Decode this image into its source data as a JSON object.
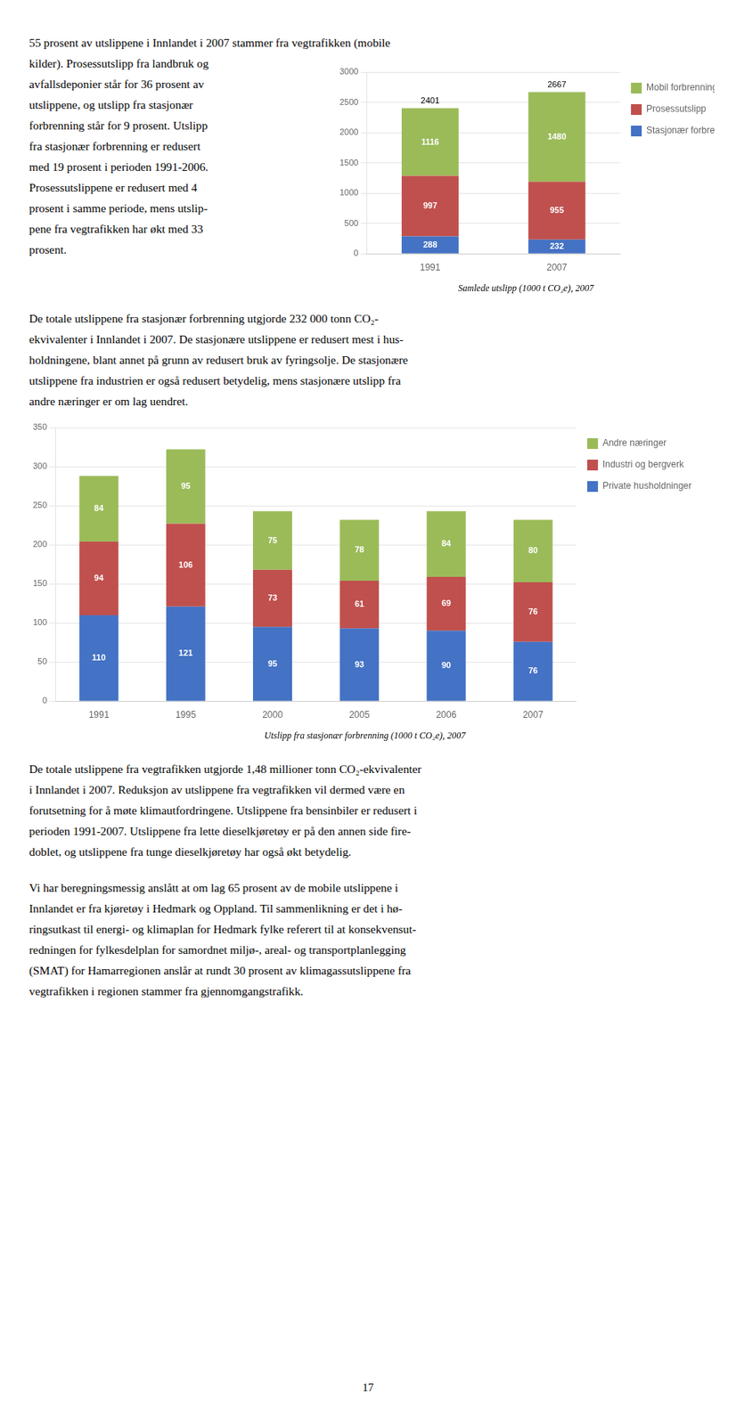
{
  "chart_data": [
    {
      "type": "bar",
      "stacked": true,
      "title": "Samlede utslipp (1000 t CO₂e), 2007",
      "categories": [
        "1991",
        "2007"
      ],
      "series": [
        {
          "name": "Stasjonær forbrenning",
          "color": "#4472C4",
          "values": [
            288,
            232
          ]
        },
        {
          "name": "Prosessutslipp",
          "color": "#C0504D",
          "values": [
            997,
            955
          ]
        },
        {
          "name": "Mobil forbrenning",
          "color": "#9BBB59",
          "values": [
            1116,
            1480
          ]
        }
      ],
      "totals": [
        2401,
        2667
      ],
      "ylim": [
        0,
        3000
      ],
      "yticks": [
        0,
        500,
        1000,
        1500,
        2000,
        2500,
        3000
      ],
      "grid": true,
      "legend": "right",
      "data_labels": true
    },
    {
      "type": "bar",
      "stacked": true,
      "title": "Utslipp fra stasjonær forbrenning (1000 t CO₂e), 2007",
      "categories": [
        "1991",
        "1995",
        "2000",
        "2005",
        "2006",
        "2007"
      ],
      "series": [
        {
          "name": "Private husholdninger",
          "color": "#4472C4",
          "values": [
            110,
            121,
            95,
            93,
            90,
            76
          ]
        },
        {
          "name": "Industri og bergverk",
          "color": "#C0504D",
          "values": [
            94,
            106,
            73,
            61,
            69,
            76
          ]
        },
        {
          "name": "Andre næringer",
          "color": "#9BBB59",
          "values": [
            84,
            95,
            75,
            78,
            84,
            80
          ]
        }
      ],
      "ylim": [
        0,
        350
      ],
      "yticks": [
        0,
        50,
        100,
        150,
        200,
        250,
        300,
        350
      ],
      "grid": true,
      "legend": "right",
      "data_labels": true
    }
  ],
  "paragraphs": [
    [
      "55 prosent av utslippene i Innlandet i 2007 stammer fra vegtrafikken (mobile",
      "kilder). Prosessutslipp fra landbruk og",
      "avfallsdeponier står for 36 prosent av",
      "utslippene, og utslipp fra stasjonær",
      "forbrenning står for 9 prosent. Utslipp",
      "fra stasjonær forbrenning er redusert",
      "med 19 prosent i perioden 1991-2006.",
      "Prosessutslippene er redusert med 4",
      "prosent i samme periode, mens utslip-",
      "pene fra vegtrafikken har økt med 33",
      "prosent."
    ],
    [
      "De totale utslippene fra stasjonær forbrenning utgjorde 232 000 tonn CO₂-",
      "ekvivalenter i Innlandet i 2007. De stasjonære utslippene er redusert mest i hus-",
      "holdningene, blant annet på grunn av redusert bruk av fyringsolje. De stasjonære",
      "utslippene fra industrien er også redusert betydelig, mens stasjonære utslipp fra",
      "andre næringer er om lag uendret."
    ],
    [
      "De totale utslippene fra vegtrafikken utgjorde 1,48 millioner tonn CO₂-ekvivalenter",
      "i Innlandet i 2007. Reduksjon av utslippene fra vegtrafikken vil dermed være en",
      "forutsetning for å møte klimautfordringene. Utslippene fra bensinbiler er redusert i",
      "perioden 1991-2007. Utslippene fra lette dieselkjøretøy er på den annen side fire-",
      "doblet, og utslippene fra tunge dieselkjøretøy har også økt betydelig."
    ],
    [
      "Vi har beregningsmessig anslått at om lag 65 prosent av de mobile utslippene i",
      "Innlandet er fra kjøretøy i Hedmark og Oppland. Til sammenlikning er det i hø-",
      "ringsutkast til energi- og klimaplan for Hedmark fylke referert til at konsekvensut-",
      "redningen for fylkesdelplan for samordnet miljø-, areal- og transportplanlegging",
      "(SMAT) for Hamarregionen anslår at rundt 30 prosent av klimagassutslippene fra",
      "vegtrafikken i regionen stammer fra gjennomgangstrafikk."
    ]
  ],
  "page_number": "17"
}
